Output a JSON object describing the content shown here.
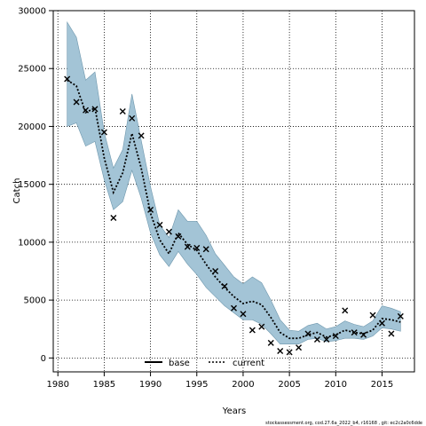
{
  "chart_data": {
    "type": "line",
    "xlabel": "Years",
    "ylabel": "Catch",
    "xlim": [
      1979.5,
      2018.5
    ],
    "ylim": [
      -1200,
      30000
    ],
    "xticks": [
      1980,
      1985,
      1990,
      1995,
      2000,
      2005,
      2010,
      2015
    ],
    "yticks": [
      0,
      5000,
      10000,
      15000,
      20000,
      25000,
      30000
    ],
    "grid": true,
    "legend_position": "bottom-center",
    "colors": {
      "band_fill": "#a3c4d6",
      "band_stroke": "#6e97ad",
      "current_line": "#000000",
      "base_line": "#000000",
      "markers": "#000000"
    },
    "legend": [
      {
        "label": "base",
        "style": "solid"
      },
      {
        "label": "current",
        "style": "dotted"
      }
    ],
    "uncertainty_band": {
      "x": [
        1981,
        1982,
        1983,
        1984,
        1985,
        1986,
        1987,
        1988,
        1989,
        1990,
        1991,
        1992,
        1993,
        1994,
        1995,
        1996,
        1997,
        1998,
        1999,
        2000,
        2001,
        2002,
        2003,
        2004,
        2005,
        2006,
        2007,
        2008,
        2009,
        2010,
        2011,
        2012,
        2013,
        2014,
        2015,
        2016,
        2017
      ],
      "upper": [
        29000,
        27700,
        24000,
        24700,
        19500,
        16400,
        18000,
        22800,
        18800,
        14800,
        11500,
        10400,
        12800,
        11800,
        11800,
        10600,
        9000,
        8000,
        7000,
        6400,
        7000,
        6500,
        5000,
        3300,
        2400,
        2300,
        2800,
        3000,
        2500,
        2700,
        3200,
        2900,
        2700,
        3200,
        4500,
        4300,
        4000
      ],
      "lower": [
        20000,
        20300,
        18300,
        18700,
        15400,
        12800,
        13500,
        16200,
        13800,
        10800,
        8900,
        7900,
        9200,
        8100,
        7200,
        6100,
        5300,
        4500,
        3900,
        3300,
        3300,
        2900,
        2100,
        1200,
        1200,
        1200,
        1600,
        1700,
        1400,
        1500,
        1700,
        1700,
        1600,
        1900,
        2600,
        2500,
        2300
      ]
    },
    "series": [
      {
        "name": "current",
        "x": [
          1981,
          1982,
          1983,
          1984,
          1985,
          1986,
          1987,
          1988,
          1989,
          1990,
          1991,
          1992,
          1993,
          1994,
          1995,
          1996,
          1997,
          1998,
          1999,
          2000,
          2001,
          2002,
          2003,
          2004,
          2005,
          2006,
          2007,
          2008,
          2009,
          2010,
          2011,
          2012,
          2013,
          2014,
          2015,
          2016,
          2017
        ],
        "y": [
          24000,
          23500,
          21200,
          21600,
          17300,
          14300,
          16000,
          19400,
          16400,
          12500,
          10200,
          9000,
          10800,
          9800,
          9300,
          8100,
          7000,
          6100,
          5300,
          4700,
          4900,
          4600,
          3500,
          2200,
          1700,
          1700,
          2000,
          2200,
          1800,
          2000,
          2400,
          2200,
          2100,
          2400,
          3400,
          3300,
          3100
        ]
      }
    ],
    "observed": {
      "x": [
        1981,
        1982,
        1983,
        1984,
        1985,
        1986,
        1987,
        1988,
        1989,
        1990,
        1991,
        1992,
        1993,
        1994,
        1995,
        1996,
        1997,
        1998,
        1999,
        2000,
        2001,
        2002,
        2003,
        2004,
        2005,
        2006,
        2007,
        2008,
        2009,
        2010,
        2011,
        2012,
        2013,
        2014,
        2015,
        2016,
        2017
      ],
      "y": [
        24100,
        22100,
        21400,
        21500,
        19500,
        12100,
        21300,
        20700,
        19200,
        12800,
        11500,
        10900,
        10500,
        9600,
        9500,
        9400,
        7500,
        6200,
        4300,
        3800,
        2400,
        2700,
        1300,
        600,
        500,
        900,
        2100,
        1600,
        1600,
        1900,
        4100,
        2200,
        2000,
        3700,
        3000,
        2100,
        3600
      ]
    }
  },
  "footer_note": "stockassessment.org, cod.27.6a_2022_b4, r16168 , git: ec2c2a0c6dde"
}
